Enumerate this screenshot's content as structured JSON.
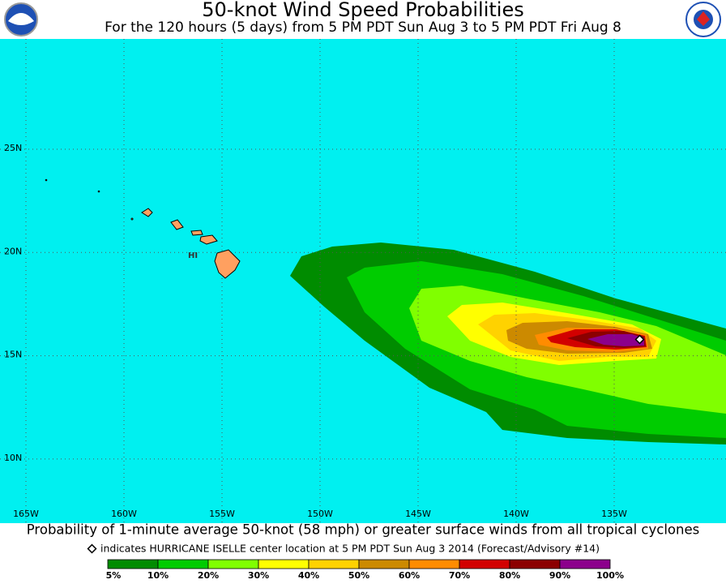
{
  "header": {
    "title": "50-knot Wind Speed Probabilities",
    "subtitle": "For the 120 hours (5 days) from 5 PM PDT Sun Aug 3 to 5 PM PDT Fri Aug 8"
  },
  "map": {
    "lat_labels": [
      "25N",
      "20N",
      "15N",
      "10N"
    ],
    "lon_labels": [
      "165W",
      "160W",
      "155W",
      "150W",
      "145W",
      "140W",
      "135W"
    ],
    "state_label": "HI"
  },
  "footer": {
    "caption": "Probability of 1-minute average 50-knot (58 mph) or greater surface winds from all tropical cyclones",
    "marker_note": "indicates HURRICANE ISELLE center location at 5 PM PDT Sun Aug 3 2014 (Forecast/Advisory #14)"
  },
  "legend": {
    "labels": [
      "5%",
      "10%",
      "20%",
      "30%",
      "40%",
      "50%",
      "60%",
      "70%",
      "80%",
      "90%",
      "100%"
    ],
    "colors": [
      "#008c00",
      "#00cc00",
      "#80ff00",
      "#ffff00",
      "#ffd200",
      "#cc8a00",
      "#ff8c00",
      "#d20000",
      "#8c0000",
      "#8c008c"
    ]
  }
}
